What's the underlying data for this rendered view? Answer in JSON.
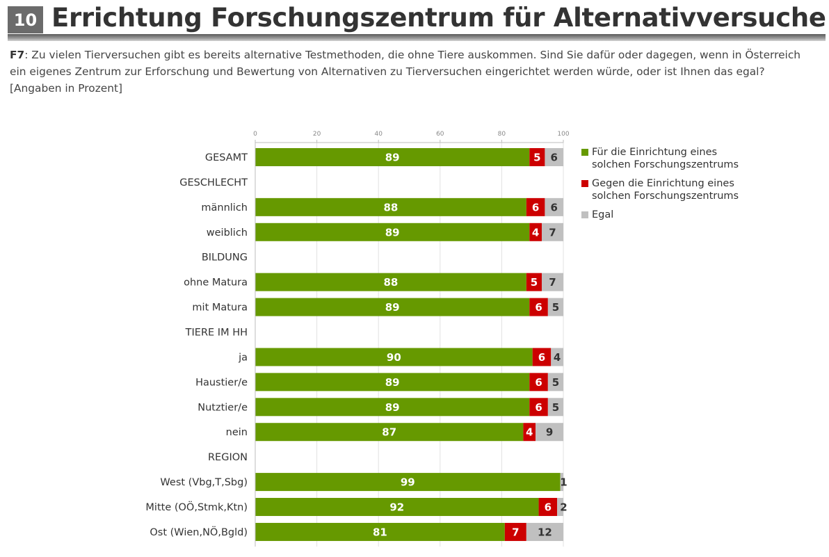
{
  "header": {
    "page_number": "10",
    "title": "Errichtung Forschungszentrum für Alternativversuche"
  },
  "question": {
    "label": "F7",
    "text": ": Zu vielen Tierversuchen gibt es bereits alternative Testmethoden, die ohne Tiere auskommen. Sind Sie dafür oder dagegen, wenn in Österreich ein eigenes Zentrum zur Erforschung und Bewertung von Alternativen zu Tierversuchen eingerichtet werden würde, oder ist Ihnen das egal? [Angaben in Prozent]"
  },
  "colors": {
    "fuer": "#669900",
    "gegen": "#cc0000",
    "egal": "#c0c0c0",
    "fuer_text": "#ffffff",
    "gegen_text": "#ffffff",
    "egal_text": "#333333"
  },
  "chart_data": {
    "type": "bar",
    "orientation": "horizontal",
    "stacked": true,
    "x_ticks": [
      "0",
      "20",
      "40",
      "60",
      "80",
      "100"
    ],
    "xlim": [
      0,
      100
    ],
    "grid": true,
    "legend_position": "right",
    "rows": [
      {
        "label": "GESAMT",
        "is_header": false,
        "values": [
          89,
          5,
          6
        ],
        "labels": [
          "89",
          "5",
          "6"
        ]
      },
      {
        "label": "GESCHLECHT",
        "is_header": true
      },
      {
        "label": "männlich",
        "is_header": false,
        "values": [
          88,
          6,
          6
        ],
        "labels": [
          "88",
          "6",
          "6"
        ]
      },
      {
        "label": "weiblich",
        "is_header": false,
        "values": [
          89,
          4,
          7
        ],
        "labels": [
          "89",
          "4",
          "7"
        ]
      },
      {
        "label": "BILDUNG",
        "is_header": true
      },
      {
        "label": "ohne Matura",
        "is_header": false,
        "values": [
          88,
          5,
          7
        ],
        "labels": [
          "88",
          "5",
          "7"
        ]
      },
      {
        "label": "mit Matura",
        "is_header": false,
        "values": [
          89,
          6,
          5
        ],
        "labels": [
          "89",
          "6",
          "5"
        ]
      },
      {
        "label": "TIERE IM HH",
        "is_header": true
      },
      {
        "label": "ja",
        "is_header": false,
        "values": [
          90,
          6,
          4
        ],
        "labels": [
          "90",
          "6",
          "4"
        ]
      },
      {
        "label": "Haustier/e",
        "is_header": false,
        "values": [
          89,
          6,
          5
        ],
        "labels": [
          "89",
          "6",
          "5"
        ]
      },
      {
        "label": "Nutztier/e",
        "is_header": false,
        "values": [
          89,
          6,
          5
        ],
        "labels": [
          "89",
          "6",
          "5"
        ]
      },
      {
        "label": "nein",
        "is_header": false,
        "values": [
          87,
          4,
          9
        ],
        "labels": [
          "87",
          "4",
          "9"
        ]
      },
      {
        "label": "REGION",
        "is_header": true
      },
      {
        "label": "West (Vbg,T,Sbg)",
        "is_header": false,
        "values": [
          99,
          0,
          1
        ],
        "labels": [
          "99",
          "",
          "1"
        ]
      },
      {
        "label": "Mitte (OÖ,Stmk,Ktn)",
        "is_header": false,
        "values": [
          92,
          6,
          2
        ],
        "labels": [
          "92",
          "6",
          "2"
        ]
      },
      {
        "label": "Ost (Wien,NÖ,Bgld)",
        "is_header": false,
        "values": [
          81,
          7,
          12
        ],
        "labels": [
          "81",
          "7",
          "12"
        ]
      }
    ],
    "series": [
      {
        "name": "Für die Einrichtung eines solchen Forschungszentrums"
      },
      {
        "name": "Gegen die Einrichtung eines solchen Forschungszentrums"
      },
      {
        "name": "Egal"
      }
    ]
  },
  "legend": {
    "items": [
      {
        "line1": "Für die Einrichtung eines",
        "line2": "solchen Forschungszentrums"
      },
      {
        "line1": "Gegen die Einrichtung eines",
        "line2": "solchen Forschungszentrums"
      },
      {
        "line1": "Egal",
        "line2": ""
      }
    ]
  }
}
